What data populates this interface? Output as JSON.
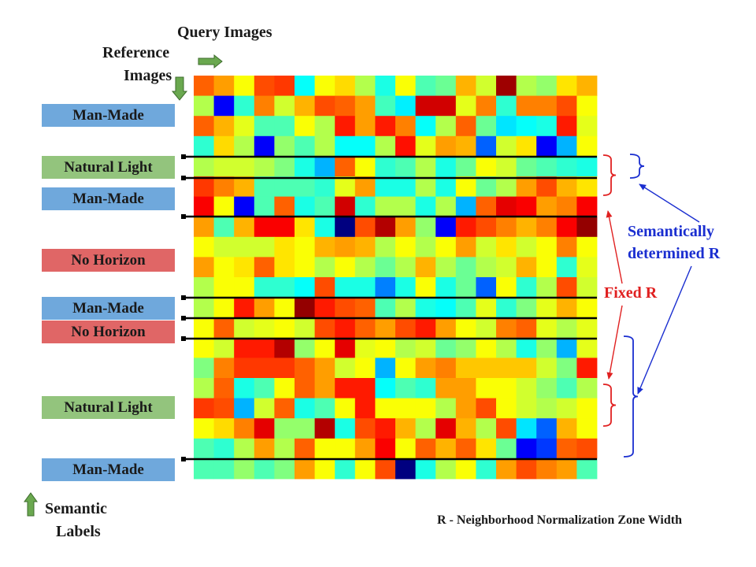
{
  "headers": {
    "query": "Query Images",
    "reference_line1": "Reference",
    "reference_line2": "Images",
    "semantic_line1": "Semantic",
    "semantic_line2": "Labels"
  },
  "colors": {
    "man_made": "#6fa8dc",
    "natural_light": "#93c47d",
    "no_horizon": "#e06666",
    "fixed_r": "#e02020",
    "semantic_r": "#1a2ed0",
    "arrow_green": "#6aa84f"
  },
  "row_labels": [
    {
      "text": "Man-Made",
      "kind": "man_made"
    },
    {
      "text": "Natural Light",
      "kind": "natural_light"
    },
    {
      "text": "Man-Made",
      "kind": "man_made"
    },
    {
      "text": "No Horizon",
      "kind": "no_horizon"
    },
    {
      "text": "Man-Made",
      "kind": "man_made"
    },
    {
      "text": "No Horizon",
      "kind": "no_horizon"
    },
    {
      "text": "Natural Light",
      "kind": "natural_light"
    },
    {
      "text": "Man-Made",
      "kind": "man_made"
    }
  ],
  "annotations": {
    "semantic_r_line1": "Semantically",
    "semantic_r_line2": "determined R",
    "fixed_r": "Fixed R",
    "footnote": "R - Neighborhood Normalization Zone Width"
  },
  "heatmap": {
    "rows": 20,
    "cols": 20,
    "values": [
      [
        0.78,
        0.72,
        0.62,
        0.8,
        0.82,
        0.38,
        0.62,
        0.66,
        0.55,
        0.4,
        0.62,
        0.45,
        0.48,
        0.7,
        0.58,
        0.97,
        0.55,
        0.52,
        0.65,
        0.7
      ],
      [
        0.55,
        0.12,
        0.42,
        0.75,
        0.58,
        0.7,
        0.8,
        0.78,
        0.72,
        0.44,
        0.36,
        0.92,
        0.92,
        0.6,
        0.75,
        0.42,
        0.75,
        0.75,
        0.8,
        0.62
      ],
      [
        0.78,
        0.7,
        0.6,
        0.45,
        0.45,
        0.62,
        0.55,
        0.85,
        0.72,
        0.85,
        0.75,
        0.38,
        0.55,
        0.78,
        0.48,
        0.35,
        0.38,
        0.4,
        0.85,
        0.6
      ],
      [
        0.42,
        0.66,
        0.55,
        0.12,
        0.52,
        0.45,
        0.55,
        0.38,
        0.38,
        0.55,
        0.86,
        0.6,
        0.72,
        0.7,
        0.22,
        0.58,
        0.65,
        0.12,
        0.3,
        0.62
      ],
      [
        0.55,
        0.58,
        0.58,
        0.55,
        0.5,
        0.4,
        0.3,
        0.78,
        0.62,
        0.42,
        0.45,
        0.55,
        0.4,
        0.48,
        0.62,
        0.58,
        0.48,
        0.45,
        0.42,
        0.4
      ],
      [
        0.82,
        0.75,
        0.7,
        0.45,
        0.45,
        0.45,
        0.42,
        0.6,
        0.72,
        0.4,
        0.4,
        0.55,
        0.4,
        0.62,
        0.48,
        0.55,
        0.72,
        0.8,
        0.7,
        0.65
      ],
      [
        0.88,
        0.62,
        0.12,
        0.45,
        0.78,
        0.4,
        0.45,
        0.92,
        0.42,
        0.55,
        0.55,
        0.4,
        0.55,
        0.3,
        0.78,
        0.9,
        0.88,
        0.72,
        0.75,
        0.88
      ],
      [
        0.72,
        0.45,
        0.7,
        0.88,
        0.88,
        0.65,
        0.4,
        0.0,
        0.8,
        0.95,
        0.72,
        0.52,
        0.12,
        0.85,
        0.8,
        0.75,
        0.7,
        0.75,
        0.88,
        0.98
      ],
      [
        0.62,
        0.58,
        0.58,
        0.58,
        0.65,
        0.62,
        0.7,
        0.72,
        0.7,
        0.55,
        0.62,
        0.55,
        0.62,
        0.72,
        0.58,
        0.65,
        0.58,
        0.62,
        0.75,
        0.62
      ],
      [
        0.72,
        0.62,
        0.65,
        0.78,
        0.65,
        0.62,
        0.55,
        0.62,
        0.55,
        0.48,
        0.55,
        0.7,
        0.55,
        0.48,
        0.55,
        0.58,
        0.7,
        0.62,
        0.42,
        0.6
      ],
      [
        0.55,
        0.62,
        0.62,
        0.42,
        0.42,
        0.38,
        0.8,
        0.4,
        0.4,
        0.25,
        0.4,
        0.62,
        0.4,
        0.48,
        0.22,
        0.62,
        0.42,
        0.55,
        0.8,
        0.58
      ],
      [
        0.55,
        0.62,
        0.85,
        0.72,
        0.62,
        0.98,
        0.85,
        0.8,
        0.78,
        0.45,
        0.55,
        0.4,
        0.38,
        0.45,
        0.6,
        0.42,
        0.5,
        0.6,
        0.7,
        0.62
      ],
      [
        0.62,
        0.78,
        0.58,
        0.6,
        0.62,
        0.58,
        0.8,
        0.85,
        0.78,
        0.72,
        0.8,
        0.85,
        0.72,
        0.62,
        0.58,
        0.75,
        0.78,
        0.6,
        0.55,
        0.6
      ],
      [
        0.62,
        0.58,
        0.85,
        0.85,
        0.95,
        0.52,
        0.62,
        0.9,
        0.6,
        0.62,
        0.55,
        0.58,
        0.48,
        0.52,
        0.62,
        0.55,
        0.4,
        0.52,
        0.3,
        0.6
      ],
      [
        0.5,
        0.75,
        0.82,
        0.82,
        0.82,
        0.78,
        0.72,
        0.58,
        0.62,
        0.3,
        0.62,
        0.72,
        0.75,
        0.68,
        0.68,
        0.68,
        0.68,
        0.58,
        0.5,
        0.85
      ],
      [
        0.55,
        0.78,
        0.4,
        0.45,
        0.62,
        0.78,
        0.72,
        0.85,
        0.85,
        0.38,
        0.45,
        0.42,
        0.72,
        0.72,
        0.62,
        0.62,
        0.58,
        0.52,
        0.45,
        0.55
      ],
      [
        0.82,
        0.8,
        0.3,
        0.58,
        0.78,
        0.4,
        0.45,
        0.62,
        0.85,
        0.62,
        0.62,
        0.62,
        0.55,
        0.72,
        0.8,
        0.62,
        0.58,
        0.55,
        0.58,
        0.62
      ],
      [
        0.62,
        0.66,
        0.75,
        0.9,
        0.52,
        0.52,
        0.95,
        0.4,
        0.8,
        0.85,
        0.7,
        0.55,
        0.9,
        0.7,
        0.55,
        0.8,
        0.35,
        0.22,
        0.7,
        0.62
      ],
      [
        0.45,
        0.42,
        0.55,
        0.72,
        0.55,
        0.78,
        0.62,
        0.62,
        0.72,
        0.88,
        0.62,
        0.78,
        0.7,
        0.78,
        0.65,
        0.48,
        0.12,
        0.18,
        0.78,
        0.8
      ],
      [
        0.45,
        0.45,
        0.52,
        0.45,
        0.5,
        0.72,
        0.62,
        0.42,
        0.62,
        0.8,
        0.0,
        0.4,
        0.55,
        0.62,
        0.42,
        0.72,
        0.8,
        0.75,
        0.72,
        0.45
      ]
    ]
  }
}
